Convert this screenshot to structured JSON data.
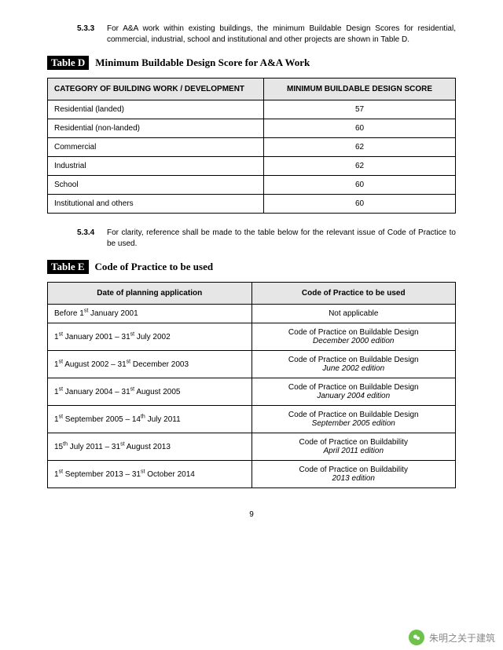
{
  "section533": {
    "num": "5.3.3",
    "text": "For A&A work within existing buildings, the minimum Buildable Design Scores for residential, commercial, industrial, school and institutional and other projects are shown in Table D."
  },
  "tableD": {
    "label": "Table D",
    "title": "Minimum Buildable Design Score for A&A Work",
    "col1": "CATEGORY OF BUILDING WORK  /  DEVELOPMENT",
    "col2": "MINIMUM BUILDABLE DESIGN SCORE",
    "rows": [
      {
        "cat": "Residential (landed)",
        "score": "57"
      },
      {
        "cat": "Residential (non-landed)",
        "score": "60"
      },
      {
        "cat": "Commercial",
        "score": "62"
      },
      {
        "cat": "Industrial",
        "score": "62"
      },
      {
        "cat": "School",
        "score": "60"
      },
      {
        "cat": "Institutional and others",
        "score": "60"
      }
    ]
  },
  "section534": {
    "num": "5.3.4",
    "text": "For clarity, reference shall be made to the table below for the relevant issue of Code of Practice to be used."
  },
  "tableE": {
    "label": "Table E",
    "title": "Code of Practice to be used",
    "col1": "Date of planning application",
    "col2": "Code of Practice to be used",
    "rows": [
      {
        "date_html": "Before 1<sup>st</sup> January 2001",
        "code": "Not applicable",
        "edition": ""
      },
      {
        "date_html": "1<sup>st</sup> January 2001 – 31<sup>st</sup> July 2002",
        "code": "Code of Practice on Buildable Design",
        "edition": "December 2000 edition"
      },
      {
        "date_html": "1<sup>st</sup> August 2002 – 31<sup>st</sup> December 2003",
        "code": "Code of Practice on Buildable Design",
        "edition": "June 2002 edition"
      },
      {
        "date_html": "1<sup>st</sup> January 2004 – 31<sup>st</sup> August 2005",
        "code": "Code of Practice on Buildable Design",
        "edition": "January 2004 edition"
      },
      {
        "date_html": "1<sup>st</sup> September 2005 – 14<sup>th</sup> July 2011",
        "code": "Code of Practice on Buildable Design",
        "edition": "September 2005 edition"
      },
      {
        "date_html": "15<sup>th</sup> July 2011 – 31<sup>st</sup> August 2013",
        "code": "Code of Practice on Buildability",
        "edition": "April 2011 edition"
      },
      {
        "date_html": "1<sup>st</sup> September 2013 – 31<sup>st</sup> October 2014",
        "code": "Code of Practice on Buildability",
        "edition": "2013 edition"
      }
    ]
  },
  "pageNumber": "9",
  "watermark": "朱明之关于建筑"
}
